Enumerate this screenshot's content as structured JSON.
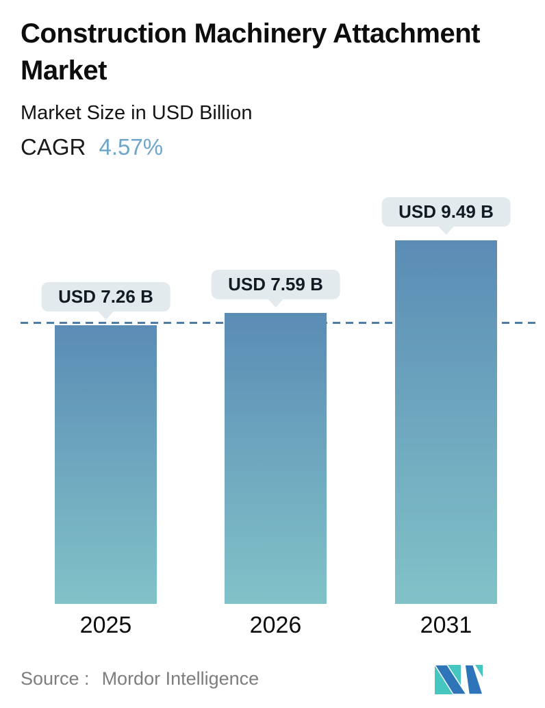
{
  "chart_data": {
    "type": "bar",
    "title": "Construction Machinery Attachment Market",
    "subtitle": "Market Size in USD Billion",
    "cagr_label": "CAGR",
    "cagr_value": "4.57%",
    "categories": [
      "2025",
      "2026",
      "2031"
    ],
    "values": [
      7.26,
      7.59,
      9.49
    ],
    "value_labels": [
      "USD 7.26 B",
      "USD 7.59 B",
      "USD 9.49 B"
    ],
    "unit": "USD Billion",
    "ylim": [
      0,
      10
    ],
    "reference_line_value": 7.26,
    "grid": false,
    "legend": false,
    "xlabel": "",
    "ylabel": "Market Size in USD Billion"
  },
  "footer": {
    "source_label": "Source :",
    "source_name": "Mordor Intelligence"
  },
  "colors": {
    "bar_gradient_top": "#5b8cb5",
    "bar_gradient_bottom": "#81c2c8",
    "reference_line": "#4d7ca9",
    "tooltip_bg": "#e3eaed",
    "cagr_accent": "#6ea6ca",
    "source_text": "#7d7d7d",
    "logo_blue": "#2e74b9",
    "logo_teal": "#45c6c1"
  }
}
